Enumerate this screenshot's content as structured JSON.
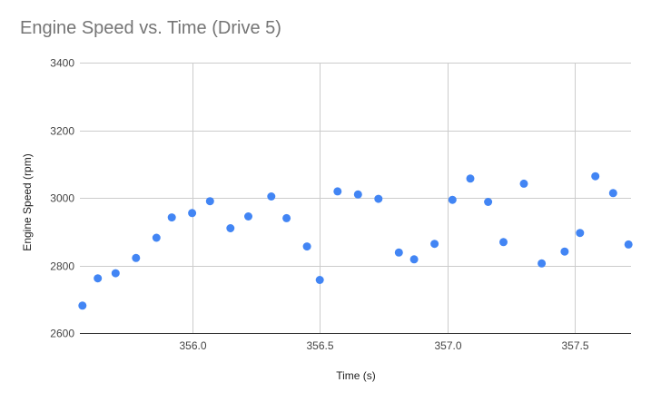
{
  "chart_data": {
    "type": "scatter",
    "title": "Engine Speed vs. Time (Drive 5)",
    "xlabel": "Time (s)",
    "ylabel": "Engine Speed (rpm)",
    "xlim": [
      355.56,
      357.72
    ],
    "ylim": [
      2600,
      3400
    ],
    "x_ticks": [
      356.0,
      356.5,
      357.0,
      357.5
    ],
    "x_tick_labels": [
      "356.0",
      "356.5",
      "357.0",
      "357.5"
    ],
    "y_ticks": [
      2600,
      2800,
      3000,
      3200,
      3400
    ],
    "y_tick_labels": [
      "2600",
      "2800",
      "3000",
      "3200",
      "3400"
    ],
    "grid": true,
    "marker_color": "#4285f4",
    "series": [
      {
        "x": [
          355.57,
          355.63,
          355.7,
          355.78,
          355.86,
          355.92,
          356.0,
          356.07,
          356.15,
          356.22,
          356.31,
          356.37,
          356.45,
          356.5,
          356.57,
          356.65,
          356.73,
          356.81,
          356.87,
          356.95,
          357.02,
          357.09,
          357.16,
          357.22,
          357.3,
          357.37,
          357.46,
          357.52,
          357.58,
          357.65,
          357.71
        ],
        "y": [
          2681,
          2762,
          2777,
          2822,
          2882,
          2942,
          2955,
          2990,
          2910,
          2945,
          3004,
          2940,
          2856,
          2757,
          3019,
          3010,
          2997,
          2838,
          2818,
          2864,
          2994,
          3057,
          2988,
          2869,
          3042,
          2806,
          2841,
          2896,
          3064,
          3014,
          2862
        ]
      }
    ]
  }
}
